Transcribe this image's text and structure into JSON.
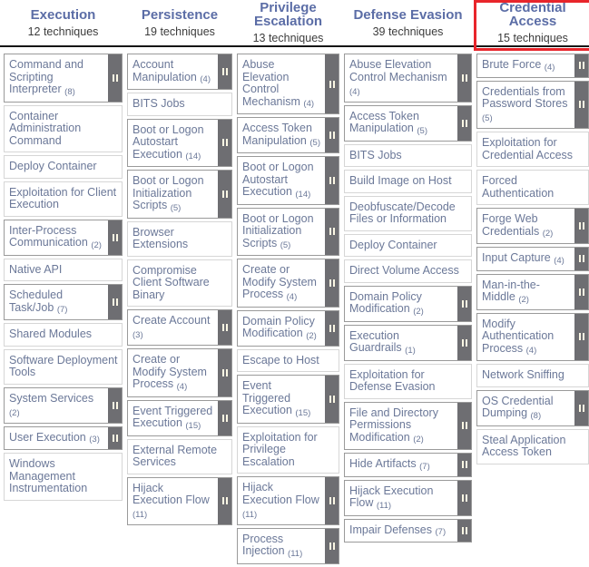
{
  "colors": {
    "tactic": "#5b6da6",
    "cell_text": "#6b7898",
    "cell_border": "#d6d6d6",
    "sub_cell_border": "#9a9a9a",
    "expand_bar": "#6e6e72",
    "expand_bar_glyph": "#fbf7e4",
    "red_highlight": "#e8252b",
    "header_divider": "#161616"
  },
  "columns": [
    {
      "tactic": "Execution",
      "count": "12 techniques",
      "highlighted": false,
      "techniques": [
        {
          "label": "Command and Scripting Interpreter",
          "count": "(8)",
          "sub": true
        },
        {
          "label": "Container Administration Command",
          "count": "",
          "sub": false
        },
        {
          "label": "Deploy Container",
          "count": "",
          "sub": false
        },
        {
          "label": "Exploitation for Client Execution",
          "count": "",
          "sub": false
        },
        {
          "label": "Inter-Process Communication",
          "count": "(2)",
          "sub": true
        },
        {
          "label": "Native API",
          "count": "",
          "sub": false
        },
        {
          "label": "Scheduled Task/Job",
          "count": "(7)",
          "sub": true
        },
        {
          "label": "Shared Modules",
          "count": "",
          "sub": false
        },
        {
          "label": "Software Deployment Tools",
          "count": "",
          "sub": false
        },
        {
          "label": "System Services",
          "count": "(2)",
          "sub": true
        },
        {
          "label": "User Execution",
          "count": "(3)",
          "sub": true
        },
        {
          "label": "Windows Management Instrumentation",
          "count": "",
          "sub": false
        }
      ]
    },
    {
      "tactic": "Persistence",
      "count": "19 techniques",
      "highlighted": false,
      "techniques": [
        {
          "label": "Account Manipulation",
          "count": "(4)",
          "sub": true
        },
        {
          "label": "BITS Jobs",
          "count": "",
          "sub": false
        },
        {
          "label": "Boot or Logon Autostart Execution",
          "count": "(14)",
          "sub": true
        },
        {
          "label": "Boot or Logon Initialization Scripts",
          "count": "(5)",
          "sub": true
        },
        {
          "label": "Browser Extensions",
          "count": "",
          "sub": false
        },
        {
          "label": "Compromise Client Software Binary",
          "count": "",
          "sub": false
        },
        {
          "label": "Create Account",
          "count": "(3)",
          "sub": true
        },
        {
          "label": "Create or Modify System Process",
          "count": "(4)",
          "sub": true
        },
        {
          "label": "Event Triggered Execution",
          "count": "(15)",
          "sub": true
        },
        {
          "label": "External Remote Services",
          "count": "",
          "sub": false
        },
        {
          "label": "Hijack Execution Flow",
          "count": "(11)",
          "sub": true
        }
      ]
    },
    {
      "tactic": "Privilege Escalation",
      "count": "13 techniques",
      "highlighted": false,
      "techniques": [
        {
          "label": "Abuse Elevation Control Mechanism",
          "count": "(4)",
          "sub": true
        },
        {
          "label": "Access Token Manipulation",
          "count": "(5)",
          "sub": true
        },
        {
          "label": "Boot or Logon Autostart Execution",
          "count": "(14)",
          "sub": true
        },
        {
          "label": "Boot or Logon Initialization Scripts",
          "count": "(5)",
          "sub": true
        },
        {
          "label": "Create or Modify System Process",
          "count": "(4)",
          "sub": true
        },
        {
          "label": "Domain Policy Modification",
          "count": "(2)",
          "sub": true
        },
        {
          "label": "Escape to Host",
          "count": "",
          "sub": false
        },
        {
          "label": "Event Triggered Execution",
          "count": "(15)",
          "sub": true
        },
        {
          "label": "Exploitation for Privilege Escalation",
          "count": "",
          "sub": false
        },
        {
          "label": "Hijack Execution Flow",
          "count": "(11)",
          "sub": true
        },
        {
          "label": "Process Injection",
          "count": "(11)",
          "sub": true
        }
      ]
    },
    {
      "tactic": "Defense Evasion",
      "count": "39 techniques",
      "highlighted": false,
      "techniques": [
        {
          "label": "Abuse Elevation Control Mechanism",
          "count": "(4)",
          "sub": true
        },
        {
          "label": "Access Token Manipulation",
          "count": "(5)",
          "sub": true
        },
        {
          "label": "BITS Jobs",
          "count": "",
          "sub": false
        },
        {
          "label": "Build Image on Host",
          "count": "",
          "sub": false
        },
        {
          "label": "Deobfuscate/Decode Files or Information",
          "count": "",
          "sub": false
        },
        {
          "label": "Deploy Container",
          "count": "",
          "sub": false
        },
        {
          "label": "Direct Volume Access",
          "count": "",
          "sub": false
        },
        {
          "label": "Domain Policy Modification",
          "count": "(2)",
          "sub": true
        },
        {
          "label": "Execution Guardrails",
          "count": "(1)",
          "sub": true
        },
        {
          "label": "Exploitation for Defense Evasion",
          "count": "",
          "sub": false
        },
        {
          "label": "File and Directory Permissions Modification",
          "count": "(2)",
          "sub": true
        },
        {
          "label": "Hide Artifacts",
          "count": "(7)",
          "sub": true
        },
        {
          "label": "Hijack Execution Flow",
          "count": "(11)",
          "sub": true
        },
        {
          "label": "Impair Defenses",
          "count": "(7)",
          "sub": true
        }
      ]
    },
    {
      "tactic": "Credential Access",
      "count": "15 techniques",
      "highlighted": true,
      "techniques": [
        {
          "label": "Brute Force",
          "count": "(4)",
          "sub": true
        },
        {
          "label": "Credentials from Password Stores",
          "count": "(5)",
          "sub": true
        },
        {
          "label": "Exploitation for Credential Access",
          "count": "",
          "sub": false
        },
        {
          "label": "Forced Authentication",
          "count": "",
          "sub": false
        },
        {
          "label": "Forge Web Credentials",
          "count": "(2)",
          "sub": true
        },
        {
          "label": "Input Capture",
          "count": "(4)",
          "sub": true
        },
        {
          "label": "Man-in-the-Middle",
          "count": "(2)",
          "sub": true
        },
        {
          "label": "Modify Authentication Process",
          "count": "(4)",
          "sub": true
        },
        {
          "label": "Network Sniffing",
          "count": "",
          "sub": false
        },
        {
          "label": "OS Credential Dumping",
          "count": "(8)",
          "sub": true
        },
        {
          "label": "Steal Application Access Token",
          "count": "",
          "sub": false
        }
      ]
    }
  ]
}
